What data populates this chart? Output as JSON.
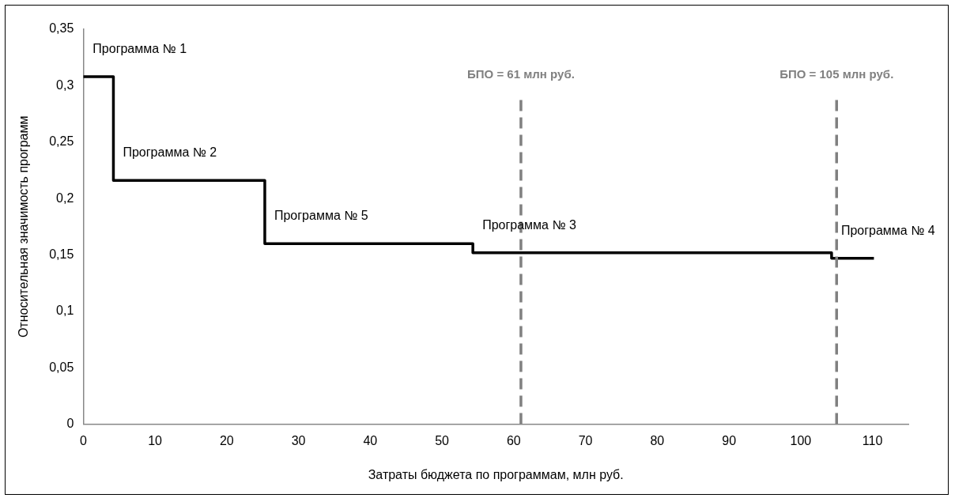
{
  "chart_data": {
    "type": "step",
    "xlabel": "Затраты бюджета по программам, млн руб.",
    "ylabel": "Относительная значимость программ",
    "x": [
      0,
      4.2,
      25.3,
      54.3,
      104.3,
      110.2
    ],
    "series": [
      {
        "color": "#000000",
        "values": [
          0.308,
          0.216,
          0.16,
          0.152,
          0.147,
          0.147
        ]
      }
    ],
    "xlim": [
      0,
      115
    ],
    "xticks": [
      0,
      10,
      20,
      30,
      40,
      50,
      60,
      70,
      80,
      90,
      100,
      110
    ],
    "ylim": [
      0,
      0.35
    ],
    "yticks": [
      0,
      {
        "value": 0.05,
        "label": "0,05"
      },
      {
        "value": 0.1,
        "label": "0,1"
      },
      {
        "value": 0.15,
        "label": "0,15"
      },
      {
        "value": 0.2,
        "label": "0,2"
      },
      {
        "value": 0.25,
        "label": "0,25"
      },
      {
        "value": 0.3,
        "label": "0,3"
      },
      {
        "value": 0.35,
        "label": "0,35"
      }
    ],
    "grid": false,
    "legend": false,
    "marker": "none",
    "line_style": "solid",
    "ref_lines": [
      {
        "axis": "x",
        "value": 61,
        "label": "БПО = 61 млн руб.",
        "color": "#808080",
        "line_style": "dashed"
      },
      {
        "axis": "x",
        "value": 105,
        "label": "БПО = 105 млн руб.",
        "color": "#808080",
        "line_style": "dashed"
      }
    ],
    "annotations": [
      {
        "text": "Программа № 1",
        "x": 0,
        "y": 0.308
      },
      {
        "text": "Программа № 2",
        "x": 4.2,
        "y": 0.216
      },
      {
        "text": "Программа № 5",
        "x": 25.3,
        "y": 0.16
      },
      {
        "text": "Программа № 3",
        "x": 54.3,
        "y": 0.152
      },
      {
        "text": "Программа № 4",
        "x": 104.3,
        "y": 0.147
      }
    ]
  }
}
